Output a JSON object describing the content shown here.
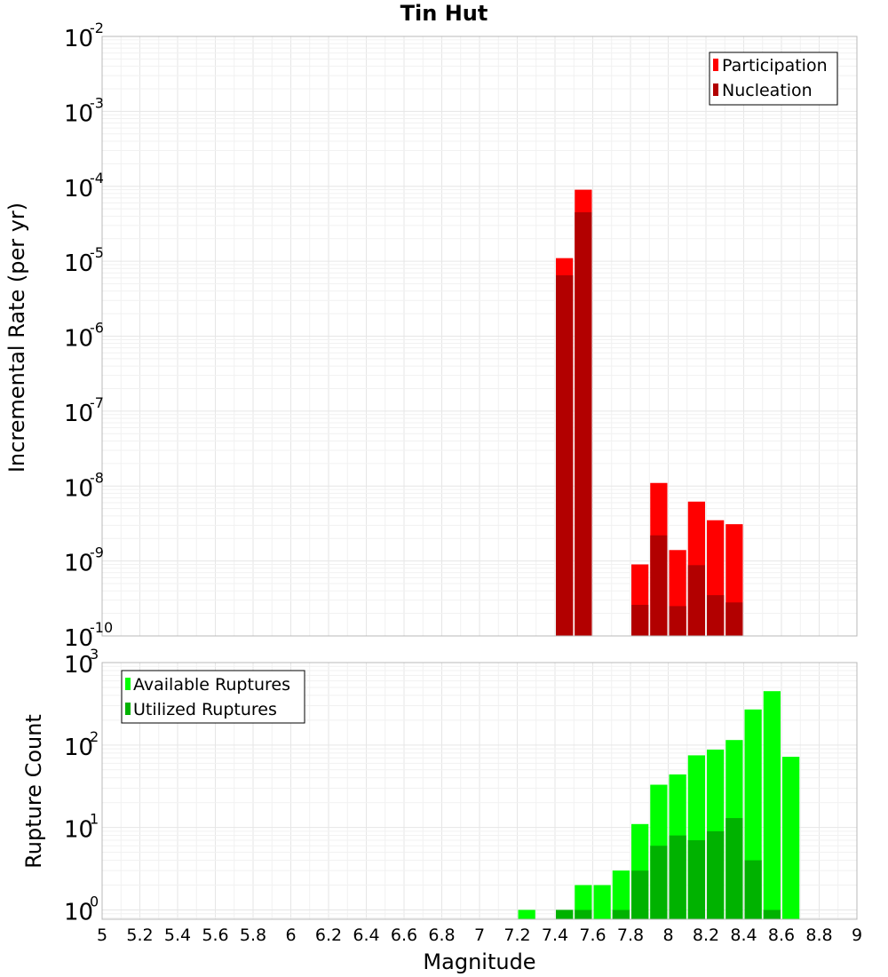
{
  "chart_data": [
    {
      "type": "bar",
      "title": "Tin Hut",
      "ylabel": "Incremental Rate (per yr)",
      "xlabel": "",
      "xlim": [
        5,
        9
      ],
      "ylim_exp": [
        -10,
        -2
      ],
      "yscale": "log",
      "bar_width": 0.1,
      "legend_placement": "top-right",
      "y_tick_exponents": [
        "-10",
        "-9",
        "-8",
        "-7",
        "-6",
        "-5",
        "-4",
        "-3",
        "-2"
      ],
      "series": [
        {
          "name": "Participation",
          "color": "#ff0000",
          "x": [
            7.45,
            7.55,
            7.85,
            7.95,
            8.05,
            8.15,
            8.25,
            8.35
          ],
          "values": [
            1.1e-05,
            9e-05,
            9e-10,
            1.1e-08,
            1.4e-09,
            6.2e-09,
            3.5e-09,
            3.1e-09
          ]
        },
        {
          "name": "Nucleation",
          "color": "#b20000",
          "x": [
            7.45,
            7.55,
            7.85,
            7.95,
            8.05,
            8.15,
            8.25,
            8.35
          ],
          "values": [
            6.5e-06,
            4.5e-05,
            2.6e-10,
            2.2e-09,
            2.5e-10,
            8.8e-10,
            3.5e-10,
            2.8e-10
          ]
        }
      ]
    },
    {
      "type": "bar",
      "ylabel": "Rupture Count",
      "xlabel": "Magnitude",
      "xlim": [
        5,
        9
      ],
      "ylim": [
        0.77,
        1000
      ],
      "yscale": "log",
      "bar_width": 0.1,
      "legend_placement": "top-left",
      "y_tick_exponents": [
        "0",
        "1",
        "2",
        "3"
      ],
      "x_tick_labels": [
        "5",
        "5.2",
        "5.4",
        "5.6",
        "5.8",
        "6",
        "6.2",
        "6.4",
        "6.6",
        "6.8",
        "7",
        "7.2",
        "7.4",
        "7.6",
        "7.8",
        "8",
        "8.2",
        "8.4",
        "8.6",
        "8.8",
        "9"
      ],
      "series": [
        {
          "name": "Available Ruptures",
          "color": "#00ff00",
          "x": [
            7.25,
            7.45,
            7.55,
            7.65,
            7.75,
            7.85,
            7.95,
            8.05,
            8.15,
            8.25,
            8.35,
            8.45,
            8.55,
            8.65
          ],
          "values": [
            1,
            1,
            2,
            2,
            3,
            11,
            33,
            44,
            75,
            88,
            115,
            270,
            450,
            72
          ]
        },
        {
          "name": "Utilized Ruptures",
          "color": "#00b200",
          "x": [
            7.45,
            7.55,
            7.75,
            7.85,
            7.95,
            8.05,
            8.15,
            8.25,
            8.35,
            8.45,
            8.55
          ],
          "values": [
            1,
            1,
            1,
            3,
            6,
            8,
            7,
            9,
            13,
            4,
            1
          ]
        }
      ]
    }
  ]
}
